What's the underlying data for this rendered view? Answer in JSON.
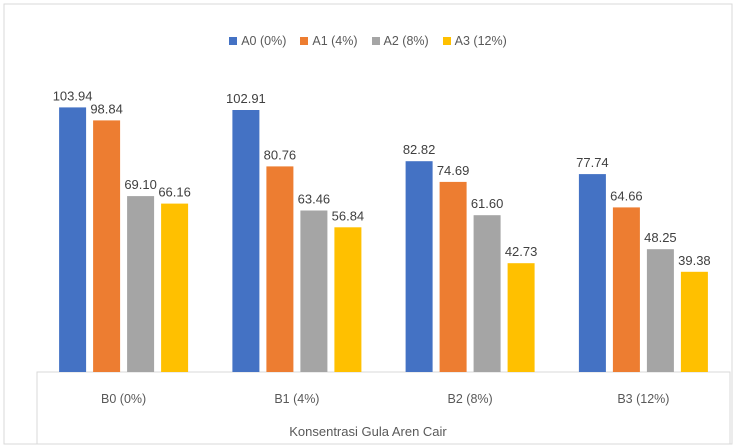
{
  "chart_data": {
    "type": "bar",
    "title": "",
    "xlabel": "Konsentrasi Gula Aren Cair",
    "ylabel": "",
    "ylim": [
      0,
      110
    ],
    "grid": false,
    "legend_position": "top",
    "categories": [
      "B0 (0%)",
      "B1 (4%)",
      "B2 (8%)",
      "B3 (12%)"
    ],
    "series": [
      {
        "name": "A0 (0%)",
        "color": "#4472C4",
        "values": [
          103.94,
          102.91,
          82.82,
          77.74
        ],
        "labels": [
          "103.94",
          "102.91",
          "82.82",
          "77.74"
        ]
      },
      {
        "name": "A1 (4%)",
        "color": "#ED7D31",
        "values": [
          98.84,
          80.76,
          74.69,
          64.66
        ],
        "labels": [
          "98.84",
          "80.76",
          "74.69",
          "64.66"
        ]
      },
      {
        "name": "A2 (8%)",
        "color": "#A5A5A5",
        "values": [
          69.1,
          63.46,
          61.6,
          48.25
        ],
        "labels": [
          "69.10",
          "63.46",
          "61.60",
          "48.25"
        ]
      },
      {
        "name": "A3 (12%)",
        "color": "#FFC000",
        "values": [
          66.16,
          56.84,
          42.73,
          39.38
        ],
        "labels": [
          "66.16",
          "56.84",
          "42.73",
          "39.38"
        ]
      }
    ]
  }
}
